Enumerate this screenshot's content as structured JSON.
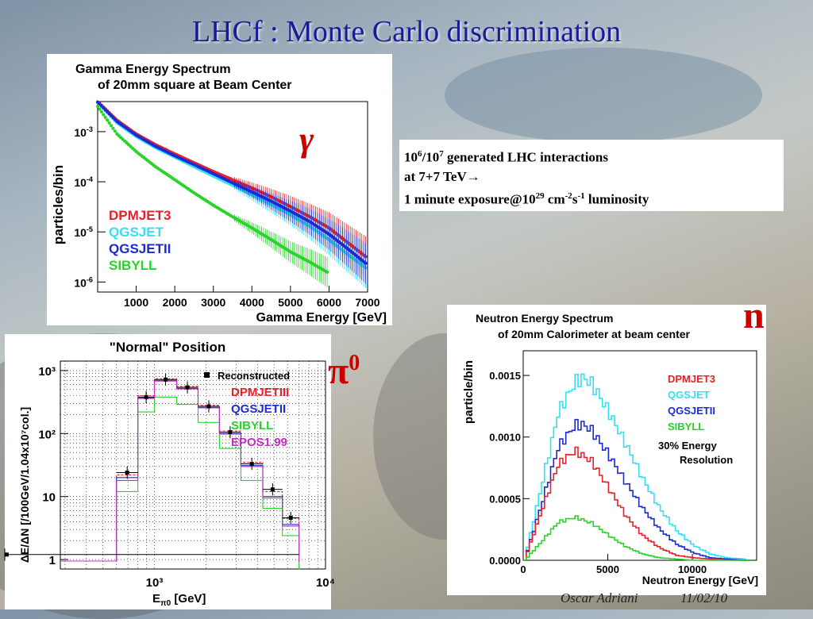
{
  "slide_title": "LHCf : Monte Carlo  discrimination",
  "info_box": {
    "line1_a": "10",
    "line1_a_sup": "6",
    "line1_b": "/10",
    "line1_b_sup": "7",
    "line1_c": " generated LHC interactions",
    "line2": "at 7+7 TeV→",
    "line3_a": "1 minute exposure@10",
    "line3_a_sup": "29",
    "line3_b": " cm",
    "line3_b_sup": "-2",
    "line3_c": "s",
    "line3_c_sup": "-1",
    "line3_d": " luminosity"
  },
  "symbols": {
    "gamma": "γ",
    "neutron": "n",
    "pion": "π",
    "pion_sup": "0"
  },
  "footer": {
    "author": "Oscar Adriani",
    "date": "11/02/10"
  },
  "colors": {
    "dpmjet3": "#e8202a",
    "qgsjet": "#33e0f0",
    "qgsjetii": "#1a2ad6",
    "sibyll": "#27d427",
    "epos": "#c030c0",
    "reco": "#000000"
  },
  "chart_data": [
    {
      "id": "gamma",
      "type": "scatter",
      "title": "Gamma Energy Spectrum",
      "subtitle": "of 20mm square at Beam Center",
      "xlabel": "Gamma Energy [GeV]",
      "ylabel": "particles/bin",
      "xlim": [
        0,
        7000
      ],
      "ylim_log10": [
        -6.2,
        -2.4
      ],
      "yscale": "log",
      "xticks": [
        "1000",
        "2000",
        "3000",
        "4000",
        "5000",
        "6000",
        "7000"
      ],
      "yticks": [
        "10-3",
        "10-4",
        "10-5",
        "10-6"
      ],
      "legend": [
        "DPMJET3",
        "QGSJET",
        "QGSJETII",
        "SIBYLL"
      ],
      "series": [
        {
          "name": "DPMJET3",
          "color": "#e8202a",
          "x": [
            0,
            500,
            1000,
            1500,
            2000,
            2500,
            3000,
            3500,
            4000,
            4500,
            5000,
            5500,
            6000,
            6500,
            7000
          ],
          "y": [
            0.004,
            0.0017,
            0.0009,
            0.00055,
            0.00036,
            0.00024,
            0.00016,
            0.00011,
            7.5e-05,
            5e-05,
            3.2e-05,
            2e-05,
            1.2e-05,
            6e-06,
            3e-06
          ]
        },
        {
          "name": "QGSJET",
          "color": "#33e0f0",
          "x": [
            0,
            500,
            1000,
            1500,
            2000,
            2500,
            3000,
            3500,
            4000,
            4500,
            5000,
            5500,
            6000,
            6500,
            7000
          ],
          "y": [
            0.0038,
            0.0015,
            0.0008,
            0.00048,
            0.00031,
            0.0002,
            0.00013,
            8.5e-05,
            5.5e-05,
            3.5e-05,
            2.2e-05,
            1.3e-05,
            7e-06,
            3.5e-06,
            1.8e-06
          ]
        },
        {
          "name": "QGSJETII",
          "color": "#1a2ad6",
          "x": [
            0,
            500,
            1000,
            1500,
            2000,
            2500,
            3000,
            3500,
            4000,
            4500,
            5000,
            5500,
            6000,
            6500,
            7000
          ],
          "y": [
            0.0039,
            0.0016,
            0.00085,
            0.00051,
            0.00033,
            0.00022,
            0.000145,
            9.5e-05,
            6.3e-05,
            4.1e-05,
            2.6e-05,
            1.6e-05,
            9e-06,
            4.5e-06,
            2.2e-06
          ]
        },
        {
          "name": "SIBYLL",
          "color": "#27d427",
          "x": [
            0,
            500,
            1000,
            1500,
            2000,
            2500,
            3000,
            3500,
            4000,
            4500,
            5000,
            5500,
            6000
          ],
          "y": [
            0.0032,
            0.0009,
            0.0004,
            0.0002,
            0.00011,
            6e-05,
            3.4e-05,
            2e-05,
            1.2e-05,
            7e-06,
            4e-06,
            2.5e-06,
            1.5e-06
          ]
        }
      ]
    },
    {
      "id": "neutron",
      "type": "line",
      "title": "Neutron Energy Spectrum",
      "subtitle": "of 20mm Calorimeter at beam center",
      "xlabel": "Neutron Energy [GeV]",
      "ylabel": "particle/bin",
      "xlim": [
        0,
        13800
      ],
      "ylim": [
        0,
        0.0017
      ],
      "xticks": [
        "0",
        "5000",
        "10000"
      ],
      "yticks": [
        "0.0000",
        "0.0005",
        "0.0010",
        "0.0015"
      ],
      "legend": [
        "DPMJET3",
        "QGSJET",
        "QGSJETII",
        "SIBYLL"
      ],
      "annotation": [
        "30% Energy",
        "Resolution"
      ],
      "series": [
        {
          "name": "QGSJET",
          "color": "#33e0f0",
          "x": [
            0,
            1000,
            2000,
            3000,
            3500,
            4000,
            5000,
            6000,
            7000,
            8000,
            9000,
            10000,
            11000,
            12000,
            13000
          ],
          "y": [
            0,
            0.0006,
            0.0012,
            0.00145,
            0.00148,
            0.00143,
            0.0012,
            0.00094,
            0.00066,
            0.00042,
            0.00024,
            0.00012,
            5e-05,
            2e-05,
            1e-05
          ]
        },
        {
          "name": "QGSJETII",
          "color": "#1a2ad6",
          "x": [
            0,
            1000,
            2000,
            3000,
            3500,
            4000,
            5000,
            6000,
            7000,
            8000,
            9000,
            10000,
            11000,
            12000,
            13000
          ],
          "y": [
            0,
            0.00045,
            0.00092,
            0.0011,
            0.0011,
            0.00105,
            0.00085,
            0.00063,
            0.00042,
            0.00025,
            0.00013,
            6e-05,
            2e-05,
            1e-05,
            0
          ]
        },
        {
          "name": "DPMJET3",
          "color": "#e8202a",
          "x": [
            0,
            1000,
            2000,
            3000,
            4000,
            5000,
            6000,
            7000,
            8000,
            9000,
            10000,
            11000,
            12000
          ],
          "y": [
            0,
            0.0004,
            0.00078,
            0.00089,
            0.0008,
            0.00058,
            0.00036,
            0.0002,
            0.0001,
            4e-05,
            2e-05,
            1e-05,
            0
          ]
        },
        {
          "name": "SIBYLL",
          "color": "#27d427",
          "x": [
            0,
            1000,
            2000,
            3000,
            4000,
            5000,
            6000,
            7000,
            8000,
            9000,
            10000,
            11000
          ],
          "y": [
            0,
            0.00015,
            0.00031,
            0.00035,
            0.0003,
            0.0002,
            0.00011,
            5e-05,
            2e-05,
            1e-05,
            0,
            0
          ]
        }
      ]
    },
    {
      "id": "pion",
      "type": "bar",
      "title": "\"Normal\" Position",
      "xlabel": "E [GeV]",
      "xlabel_sub": "π0",
      "ylabel": "ΔE/ΔN [/100GeV/1.04x10⁷col.]",
      "xscale": "log",
      "yscale": "log",
      "xlim_log10": [
        2.45,
        4.0
      ],
      "ylim_log10": [
        -0.15,
        3.15
      ],
      "xticks": [
        "10³",
        "10⁴"
      ],
      "yticks": [
        "10³",
        "10²",
        "10",
        "1"
      ],
      "legend": [
        "Reconstructed",
        "DPMJETIII",
        "QGSJETII",
        "SIBYLL",
        "EPOS1.99"
      ],
      "bin_edges": [
        400,
        600,
        800,
        1000,
        1350,
        1800,
        2400,
        3200,
        4300,
        5600,
        7000
      ],
      "series": [
        {
          "name": "Reconstructed",
          "color": "#000000",
          "values": [
            null,
            24,
            380,
            720,
            540,
            270,
            105,
            33,
            13,
            4.6,
            1.2
          ]
        },
        {
          "name": "DPMJETIII",
          "color": "#e8202a",
          "values": [
            null,
            22,
            400,
            740,
            560,
            280,
            110,
            35,
            12,
            4.5,
            1.3
          ]
        },
        {
          "name": "QGSJETII",
          "color": "#1a2ad6",
          "values": [
            null,
            20,
            370,
            690,
            520,
            260,
            100,
            31,
            10,
            3.6,
            0.9
          ]
        },
        {
          "name": "SIBYLL",
          "color": "#27d427",
          "values": [
            null,
            12,
            220,
            380,
            290,
            150,
            58,
            18,
            6.5,
            2.4,
            0.7
          ]
        },
        {
          "name": "EPOS1.99",
          "color": "#c030c0",
          "values": [
            null,
            18,
            360,
            680,
            510,
            255,
            98,
            30,
            9.5,
            3.4,
            0.9
          ]
        }
      ]
    }
  ]
}
